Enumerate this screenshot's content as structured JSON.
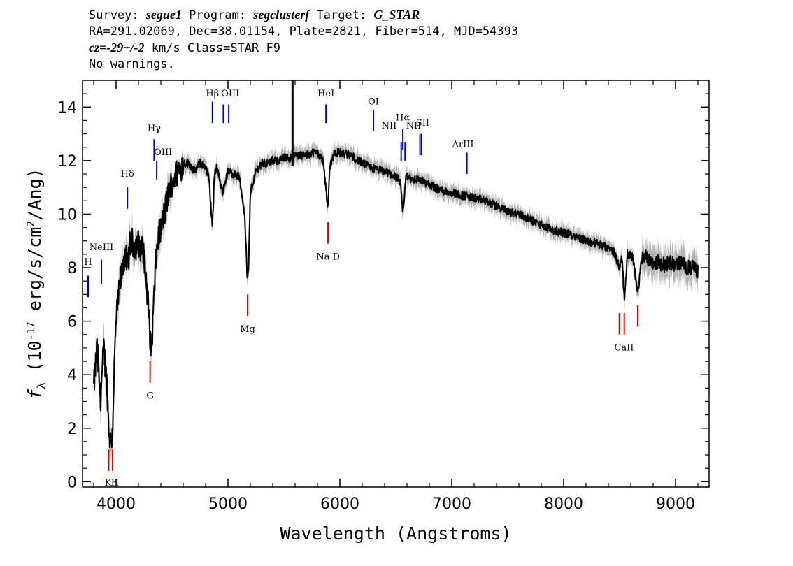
{
  "header": {
    "line1": {
      "survey_label": "Survey: ",
      "survey": "segue1",
      "program_label": " Program: ",
      "program": "segclusterf",
      "target_label": " Target: ",
      "target": "G_STAR"
    },
    "line2": "RA=291.02069, Dec=38.01154, Plate=2821, Fiber=514, MJD=54393",
    "line3": {
      "cz_label": "cz=",
      "cz_value": "-29+/-2",
      "rest": " km/s Class=STAR F9"
    },
    "line4": "No warnings."
  },
  "colors": {
    "spectrum": "#000000",
    "error_band": "#b4b4b4",
    "emission_line": "#0000cc",
    "absorption_line": "#dd0000"
  },
  "chart_data": {
    "type": "line",
    "xlabel": "Wavelength (Angstroms)",
    "ylabel": "f_λ (10^-17 erg/s/cm^2/Ang)",
    "xlim": [
      3700,
      9300
    ],
    "ylim": [
      -0.2,
      15
    ],
    "x_ticks": [
      4000,
      5000,
      6000,
      7000,
      8000,
      9000
    ],
    "y_ticks": [
      0,
      2,
      4,
      6,
      8,
      10,
      12,
      14
    ],
    "series": [
      {
        "x": [
          3800,
          3830,
          3860,
          3890,
          3920,
          3935,
          3950,
          3968,
          3980,
          4000,
          4030,
          4060,
          4080,
          4101,
          4130,
          4170,
          4200,
          4250,
          4280,
          4300,
          4310,
          4320,
          4340,
          4360,
          4380,
          4400,
          4430,
          4470,
          4500,
          4550,
          4600,
          4650,
          4700,
          4750,
          4800,
          4830,
          4861,
          4880,
          4900,
          4950,
          5000,
          5050,
          5100,
          5150,
          5172,
          5183,
          5200,
          5250,
          5300,
          5350,
          5400,
          5450,
          5500,
          5550,
          5600,
          5650,
          5700,
          5750,
          5800,
          5850,
          5880,
          5893,
          5910,
          5950,
          6000,
          6100,
          6200,
          6300,
          6400,
          6500,
          6540,
          6563,
          6590,
          6650,
          6700,
          6800,
          6900,
          7000,
          7100,
          7200,
          7300,
          7400,
          7500,
          7600,
          7700,
          7800,
          7900,
          8000,
          8100,
          8200,
          8300,
          8400,
          8450,
          8498,
          8520,
          8542,
          8570,
          8620,
          8662,
          8700,
          8750,
          8800,
          8850,
          8900,
          8950,
          9000,
          9050,
          9100,
          9150,
          9200
        ],
        "y": [
          3.5,
          5.0,
          3.0,
          5.0,
          3.5,
          2.0,
          1.5,
          1.8,
          3.8,
          6.0,
          7.2,
          8.0,
          8.6,
          8.0,
          9.0,
          8.8,
          8.9,
          8.5,
          7.0,
          5.8,
          4.8,
          5.2,
          7.0,
          8.5,
          9.2,
          9.4,
          10.0,
          10.8,
          11.2,
          11.6,
          11.9,
          11.9,
          11.6,
          11.9,
          11.8,
          11.3,
          9.5,
          11.5,
          11.8,
          10.8,
          11.6,
          11.5,
          11.4,
          10.0,
          7.6,
          7.8,
          10.8,
          11.6,
          11.9,
          11.9,
          12.0,
          12.0,
          12.1,
          12.1,
          12.2,
          12.2,
          12.2,
          12.3,
          12.3,
          12.0,
          10.8,
          10.2,
          11.8,
          12.3,
          12.3,
          12.2,
          11.9,
          11.7,
          11.6,
          11.4,
          11.2,
          10.0,
          11.4,
          11.3,
          11.3,
          11.1,
          10.9,
          10.8,
          10.7,
          10.6,
          10.5,
          10.3,
          10.1,
          10.0,
          9.8,
          9.6,
          9.4,
          9.3,
          9.2,
          9.0,
          8.9,
          8.7,
          8.6,
          8.0,
          8.5,
          6.8,
          8.5,
          8.4,
          7.0,
          8.4,
          8.4,
          8.2,
          8.2,
          8.1,
          8.2,
          8.1,
          8.2,
          8.0,
          8.0,
          7.9
        ]
      }
    ],
    "emission_lines": [
      {
        "label": "H",
        "x": 3750
      },
      {
        "label": "NeIII",
        "x": 3869
      },
      {
        "label": "Hδ",
        "x": 4101
      },
      {
        "label": "Hγ",
        "x": 4340
      },
      {
        "label": "OIII",
        "x": 4363
      },
      {
        "label": "Hβ",
        "x": 4861
      },
      {
        "label": "OIII",
        "x": 4959
      },
      {
        "label": "OIII",
        "x": 5007
      },
      {
        "label": "HeI",
        "x": 5876
      },
      {
        "label": "OI",
        "x": 6300
      },
      {
        "label": "NII",
        "x": 6548
      },
      {
        "label": "Hα",
        "x": 6563
      },
      {
        "label": "NII",
        "x": 6583
      },
      {
        "label": "SII",
        "x": 6716
      },
      {
        "label": "SII",
        "x": 6731
      },
      {
        "label": "ArIII",
        "x": 7135
      }
    ],
    "absorption_lines": [
      {
        "label": "K",
        "x": 3934
      },
      {
        "label": "H",
        "x": 3969
      },
      {
        "label": "G",
        "x": 4304
      },
      {
        "label": "Mg",
        "x": 5175
      },
      {
        "label": "Na D",
        "x": 5894
      },
      {
        "label": "CaII",
        "x": 8498
      },
      {
        "label": "CaII",
        "x": 8542
      },
      {
        "label": "CaII",
        "x": 8662
      }
    ]
  }
}
